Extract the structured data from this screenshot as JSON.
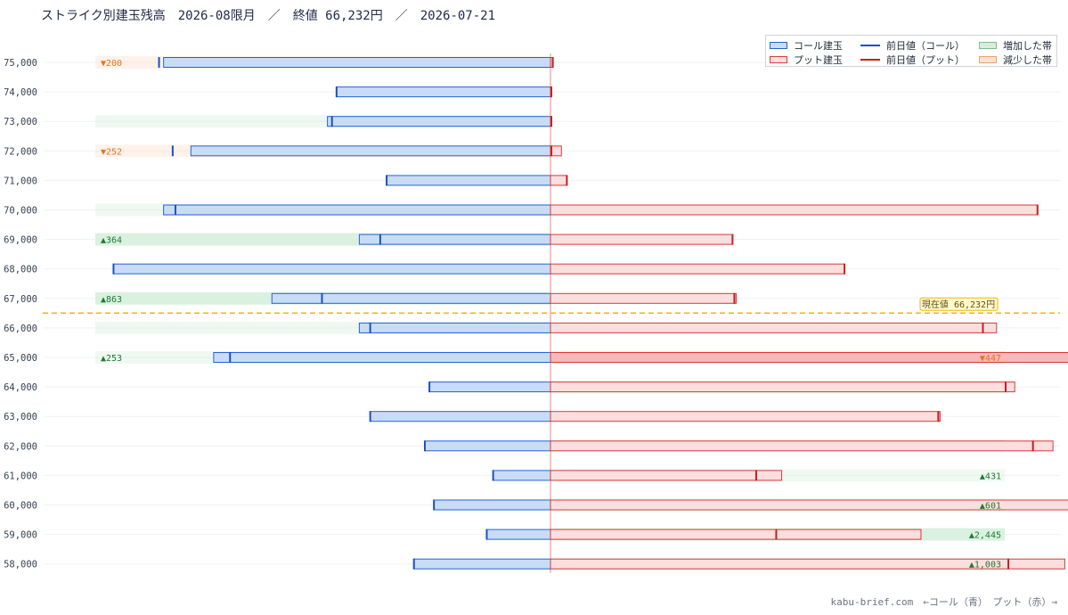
{
  "title": "ストライク別建玉残高　2026-08限月　／　終値 66,232円　／　2026-07-21",
  "footer": "kabu-brief.com　←コール（青）　プット（赤）→",
  "current_price_label": "現在値 66,232円",
  "legend": {
    "call": "コール建玉",
    "put": "プット建玉",
    "prev_call": "前日値（コール）",
    "prev_put": "前日値（プット）",
    "increase": "増加した帯",
    "decrease": "減少した帯"
  },
  "colors": {
    "call_fill": "#c9dcf6",
    "call_stroke": "#2563d8",
    "put_fill": "#fbdede",
    "put_stroke": "#d83a3a",
    "prev_call": "#1d4fc4",
    "prev_put": "#c81e1e",
    "increase_band": "#d6efdc",
    "decrease_band": "#fde3d0",
    "increase_text": "#1e7b34",
    "decrease_text": "#e8731a",
    "current_price": "#f2b705"
  },
  "chart_data": {
    "type": "bar",
    "orientation": "horizontal-butterfly",
    "current_price": 66232,
    "strikes": [
      {
        "strike": "75,000",
        "call": 4250,
        "call_prev": 4300,
        "put": 30,
        "put_prev": 25,
        "call_band": "decrease",
        "call_label": "▼200",
        "put_band": "",
        "put_label": ""
      },
      {
        "strike": "74,000",
        "call": 2350,
        "call_prev": 2350,
        "put": 10,
        "put_prev": 10,
        "call_band": "",
        "call_label": "",
        "put_band": "",
        "put_label": ""
      },
      {
        "strike": "73,000",
        "call": 2450,
        "call_prev": 2400,
        "put": 10,
        "put_prev": 10,
        "call_band": "increase-light",
        "call_label": "",
        "put_band": "",
        "put_label": ""
      },
      {
        "strike": "72,000",
        "call": 3950,
        "call_prev": 4150,
        "put": 120,
        "put_prev": 10,
        "call_band": "decrease",
        "call_label": "▼252",
        "put_band": "",
        "put_label": ""
      },
      {
        "strike": "71,000",
        "call": 1800,
        "call_prev": 1800,
        "put": 180,
        "put_prev": 180,
        "call_band": "",
        "call_label": "",
        "put_band": "",
        "put_label": ""
      },
      {
        "strike": "70,000",
        "call": 4250,
        "call_prev": 4120,
        "put": 5350,
        "put_prev": 5350,
        "call_band": "increase-light",
        "call_label": "",
        "put_band": "",
        "put_label": ""
      },
      {
        "strike": "69,000",
        "call": 2100,
        "call_prev": 1870,
        "put": 2000,
        "put_prev": 2000,
        "call_band": "increase",
        "call_label": "▲364",
        "put_band": "",
        "put_label": ""
      },
      {
        "strike": "68,000",
        "call": 4800,
        "call_prev": 4800,
        "put": 3230,
        "put_prev": 3230,
        "call_band": "",
        "call_label": "",
        "put_band": "",
        "put_label": ""
      },
      {
        "strike": "67,000",
        "call": 3060,
        "call_prev": 2510,
        "put": 2040,
        "put_prev": 2020,
        "call_band": "increase",
        "call_label": "▲863",
        "put_band": "",
        "put_label": ""
      },
      {
        "strike": "66,000",
        "call": 2100,
        "call_prev": 1980,
        "put": 4900,
        "put_prev": 4750,
        "call_band": "increase-light",
        "call_label": "",
        "put_band": "",
        "put_label": ""
      },
      {
        "strike": "65,000",
        "call": 3700,
        "call_prev": 3520,
        "put": 8500,
        "put_prev": 8800,
        "call_band": "increase-light",
        "call_label": "▲253",
        "put_band": "decrease-strong",
        "put_label": "▼447"
      },
      {
        "strike": "64,000",
        "call": 1330,
        "call_prev": 1330,
        "put": 5100,
        "put_prev": 5000,
        "call_band": "",
        "call_label": "",
        "put_band": "increase-light",
        "put_label": ""
      },
      {
        "strike": "63,000",
        "call": 1980,
        "call_prev": 1980,
        "put": 4280,
        "put_prev": 4260,
        "call_band": "",
        "call_label": "",
        "put_band": "",
        "put_label": ""
      },
      {
        "strike": "62,000",
        "call": 1380,
        "call_prev": 1380,
        "put": 5520,
        "put_prev": 5300,
        "call_band": "",
        "call_label": "",
        "put_band": "increase-light",
        "put_label": ""
      },
      {
        "strike": "61,000",
        "call": 630,
        "call_prev": 630,
        "put": 2540,
        "put_prev": 2260,
        "call_band": "",
        "call_label": "",
        "put_band": "increase-light",
        "put_label": "▲431"
      },
      {
        "strike": "60,000",
        "call": 1280,
        "call_prev": 1280,
        "put": 7620,
        "put_prev": 7220,
        "call_band": "",
        "call_label": "",
        "put_band": "increase-light",
        "put_label": "▲601"
      },
      {
        "strike": "59,000",
        "call": 700,
        "call_prev": 700,
        "put": 4070,
        "put_prev": 2480,
        "call_band": "",
        "call_label": "",
        "put_band": "increase",
        "put_label": "▲2,445"
      },
      {
        "strike": "58,000",
        "call": 1500,
        "call_prev": 1500,
        "put": 5650,
        "put_prev": 5030,
        "call_band": "",
        "call_label": "",
        "put_band": "increase-light",
        "put_label": "▲1,003"
      }
    ]
  }
}
